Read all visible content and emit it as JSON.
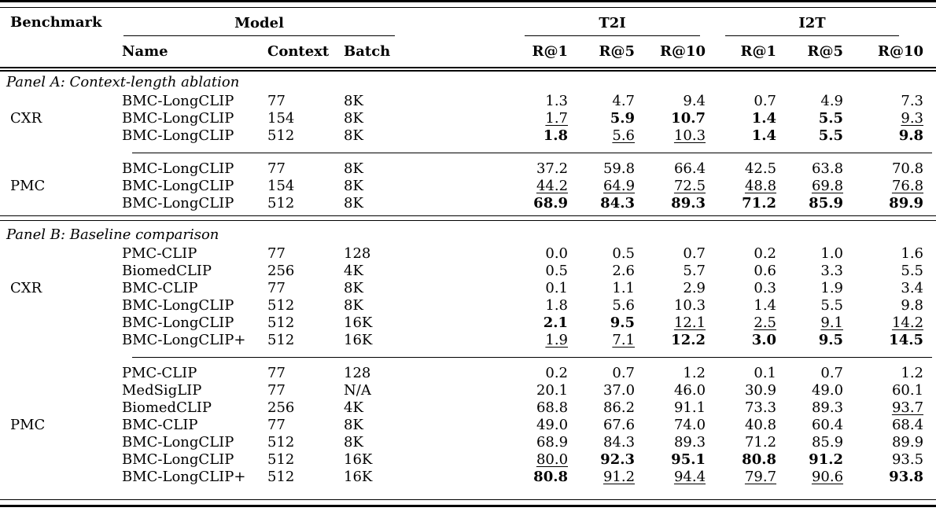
{
  "colors": {
    "text": "#000000",
    "background": "#ffffff",
    "rule": "#000000"
  },
  "table": {
    "headers": {
      "benchmark": "Benchmark",
      "model_group": "Model",
      "t2i_group": "T2I",
      "i2t_group": "I2T",
      "name": "Name",
      "context": "Context",
      "batch": "Batch",
      "metrics": [
        "R@1",
        "R@5",
        "R@10",
        "R@1",
        "R@5",
        "R@10"
      ]
    },
    "panels": [
      {
        "title": "Panel A: Context-length ablation",
        "groups": [
          {
            "benchmark": "CXR",
            "label_row_index": 1,
            "rows": [
              {
                "name": "BMC-LongCLIP",
                "context": "77",
                "batch": "8K",
                "values": [
                  {
                    "v": "1.3",
                    "s": "p"
                  },
                  {
                    "v": "4.7",
                    "s": "p"
                  },
                  {
                    "v": "9.4",
                    "s": "p"
                  },
                  {
                    "v": "0.7",
                    "s": "p"
                  },
                  {
                    "v": "4.9",
                    "s": "p"
                  },
                  {
                    "v": "7.3",
                    "s": "p"
                  }
                ]
              },
              {
                "name": "BMC-LongCLIP",
                "context": "154",
                "batch": "8K",
                "values": [
                  {
                    "v": "1.7",
                    "s": "u"
                  },
                  {
                    "v": "5.9",
                    "s": "b"
                  },
                  {
                    "v": "10.7",
                    "s": "b"
                  },
                  {
                    "v": "1.4",
                    "s": "b"
                  },
                  {
                    "v": "5.5",
                    "s": "b"
                  },
                  {
                    "v": "9.3",
                    "s": "u"
                  }
                ]
              },
              {
                "name": "BMC-LongCLIP",
                "context": "512",
                "batch": "8K",
                "values": [
                  {
                    "v": "1.8",
                    "s": "b"
                  },
                  {
                    "v": "5.6",
                    "s": "u"
                  },
                  {
                    "v": "10.3",
                    "s": "u"
                  },
                  {
                    "v": "1.4",
                    "s": "b"
                  },
                  {
                    "v": "5.5",
                    "s": "b"
                  },
                  {
                    "v": "9.8",
                    "s": "b"
                  }
                ]
              }
            ]
          },
          {
            "benchmark": "PMC",
            "label_row_index": 1,
            "rows": [
              {
                "name": "BMC-LongCLIP",
                "context": "77",
                "batch": "8K",
                "values": [
                  {
                    "v": "37.2",
                    "s": "p"
                  },
                  {
                    "v": "59.8",
                    "s": "p"
                  },
                  {
                    "v": "66.4",
                    "s": "p"
                  },
                  {
                    "v": "42.5",
                    "s": "p"
                  },
                  {
                    "v": "63.8",
                    "s": "p"
                  },
                  {
                    "v": "70.8",
                    "s": "p"
                  }
                ]
              },
              {
                "name": "BMC-LongCLIP",
                "context": "154",
                "batch": "8K",
                "values": [
                  {
                    "v": "44.2",
                    "s": "u"
                  },
                  {
                    "v": "64.9",
                    "s": "u"
                  },
                  {
                    "v": "72.5",
                    "s": "u"
                  },
                  {
                    "v": "48.8",
                    "s": "u"
                  },
                  {
                    "v": "69.8",
                    "s": "u"
                  },
                  {
                    "v": "76.8",
                    "s": "u"
                  }
                ]
              },
              {
                "name": "BMC-LongCLIP",
                "context": "512",
                "batch": "8K",
                "values": [
                  {
                    "v": "68.9",
                    "s": "b"
                  },
                  {
                    "v": "84.3",
                    "s": "b"
                  },
                  {
                    "v": "89.3",
                    "s": "b"
                  },
                  {
                    "v": "71.2",
                    "s": "b"
                  },
                  {
                    "v": "85.9",
                    "s": "b"
                  },
                  {
                    "v": "89.9",
                    "s": "b"
                  }
                ]
              }
            ]
          }
        ]
      },
      {
        "title": "Panel B: Baseline comparison",
        "groups": [
          {
            "benchmark": "CXR",
            "label_row_index": 2,
            "rows": [
              {
                "name": "PMC-CLIP",
                "context": "77",
                "batch": "128",
                "values": [
                  {
                    "v": "0.0",
                    "s": "p"
                  },
                  {
                    "v": "0.5",
                    "s": "p"
                  },
                  {
                    "v": "0.7",
                    "s": "p"
                  },
                  {
                    "v": "0.2",
                    "s": "p"
                  },
                  {
                    "v": "1.0",
                    "s": "p"
                  },
                  {
                    "v": "1.6",
                    "s": "p"
                  }
                ]
              },
              {
                "name": "BiomedCLIP",
                "context": "256",
                "batch": "4K",
                "values": [
                  {
                    "v": "0.5",
                    "s": "p"
                  },
                  {
                    "v": "2.6",
                    "s": "p"
                  },
                  {
                    "v": "5.7",
                    "s": "p"
                  },
                  {
                    "v": "0.6",
                    "s": "p"
                  },
                  {
                    "v": "3.3",
                    "s": "p"
                  },
                  {
                    "v": "5.5",
                    "s": "p"
                  }
                ]
              },
              {
                "name": "BMC-CLIP",
                "context": "77",
                "batch": "8K",
                "values": [
                  {
                    "v": "0.1",
                    "s": "p"
                  },
                  {
                    "v": "1.1",
                    "s": "p"
                  },
                  {
                    "v": "2.9",
                    "s": "p"
                  },
                  {
                    "v": "0.3",
                    "s": "p"
                  },
                  {
                    "v": "1.9",
                    "s": "p"
                  },
                  {
                    "v": "3.4",
                    "s": "p"
                  }
                ]
              },
              {
                "name": "BMC-LongCLIP",
                "context": "512",
                "batch": "8K",
                "values": [
                  {
                    "v": "1.8",
                    "s": "p"
                  },
                  {
                    "v": "5.6",
                    "s": "p"
                  },
                  {
                    "v": "10.3",
                    "s": "p"
                  },
                  {
                    "v": "1.4",
                    "s": "p"
                  },
                  {
                    "v": "5.5",
                    "s": "p"
                  },
                  {
                    "v": "9.8",
                    "s": "p"
                  }
                ]
              },
              {
                "name": "BMC-LongCLIP",
                "context": "512",
                "batch": "16K",
                "values": [
                  {
                    "v": "2.1",
                    "s": "b"
                  },
                  {
                    "v": "9.5",
                    "s": "b"
                  },
                  {
                    "v": "12.1",
                    "s": "u"
                  },
                  {
                    "v": "2.5",
                    "s": "u"
                  },
                  {
                    "v": "9.1",
                    "s": "u"
                  },
                  {
                    "v": "14.2",
                    "s": "u"
                  }
                ]
              },
              {
                "name": "BMC-LongCLIP+",
                "context": "512",
                "batch": "16K",
                "values": [
                  {
                    "v": "1.9",
                    "s": "u"
                  },
                  {
                    "v": "7.1",
                    "s": "u"
                  },
                  {
                    "v": "12.2",
                    "s": "b"
                  },
                  {
                    "v": "3.0",
                    "s": "b"
                  },
                  {
                    "v": "9.5",
                    "s": "b"
                  },
                  {
                    "v": "14.5",
                    "s": "b"
                  }
                ]
              }
            ]
          },
          {
            "benchmark": "PMC",
            "label_row_index": 3,
            "rows": [
              {
                "name": "PMC-CLIP",
                "context": "77",
                "batch": "128",
                "values": [
                  {
                    "v": "0.2",
                    "s": "p"
                  },
                  {
                    "v": "0.7",
                    "s": "p"
                  },
                  {
                    "v": "1.2",
                    "s": "p"
                  },
                  {
                    "v": "0.1",
                    "s": "p"
                  },
                  {
                    "v": "0.7",
                    "s": "p"
                  },
                  {
                    "v": "1.2",
                    "s": "p"
                  }
                ]
              },
              {
                "name": "MedSigLIP",
                "context": "77",
                "batch": "N/A",
                "values": [
                  {
                    "v": "20.1",
                    "s": "p"
                  },
                  {
                    "v": "37.0",
                    "s": "p"
                  },
                  {
                    "v": "46.0",
                    "s": "p"
                  },
                  {
                    "v": "30.9",
                    "s": "p"
                  },
                  {
                    "v": "49.0",
                    "s": "p"
                  },
                  {
                    "v": "60.1",
                    "s": "p"
                  }
                ]
              },
              {
                "name": "BiomedCLIP",
                "context": "256",
                "batch": "4K",
                "values": [
                  {
                    "v": "68.8",
                    "s": "p"
                  },
                  {
                    "v": "86.2",
                    "s": "p"
                  },
                  {
                    "v": "91.1",
                    "s": "p"
                  },
                  {
                    "v": "73.3",
                    "s": "p"
                  },
                  {
                    "v": "89.3",
                    "s": "p"
                  },
                  {
                    "v": "93.7",
                    "s": "u"
                  }
                ]
              },
              {
                "name": "BMC-CLIP",
                "context": "77",
                "batch": "8K",
                "values": [
                  {
                    "v": "49.0",
                    "s": "p"
                  },
                  {
                    "v": "67.6",
                    "s": "p"
                  },
                  {
                    "v": "74.0",
                    "s": "p"
                  },
                  {
                    "v": "40.8",
                    "s": "p"
                  },
                  {
                    "v": "60.4",
                    "s": "p"
                  },
                  {
                    "v": "68.4",
                    "s": "p"
                  }
                ]
              },
              {
                "name": "BMC-LongCLIP",
                "context": "512",
                "batch": "8K",
                "values": [
                  {
                    "v": "68.9",
                    "s": "p"
                  },
                  {
                    "v": "84.3",
                    "s": "p"
                  },
                  {
                    "v": "89.3",
                    "s": "p"
                  },
                  {
                    "v": "71.2",
                    "s": "p"
                  },
                  {
                    "v": "85.9",
                    "s": "p"
                  },
                  {
                    "v": "89.9",
                    "s": "p"
                  }
                ]
              },
              {
                "name": "BMC-LongCLIP",
                "context": "512",
                "batch": "16K",
                "values": [
                  {
                    "v": "80.0",
                    "s": "u"
                  },
                  {
                    "v": "92.3",
                    "s": "b"
                  },
                  {
                    "v": "95.1",
                    "s": "b"
                  },
                  {
                    "v": "80.8",
                    "s": "b"
                  },
                  {
                    "v": "91.2",
                    "s": "b"
                  },
                  {
                    "v": "93.5",
                    "s": "p"
                  }
                ]
              },
              {
                "name": "BMC-LongCLIP+",
                "context": "512",
                "batch": "16K",
                "values": [
                  {
                    "v": "80.8",
                    "s": "b"
                  },
                  {
                    "v": "91.2",
                    "s": "u"
                  },
                  {
                    "v": "94.4",
                    "s": "u"
                  },
                  {
                    "v": "79.7",
                    "s": "u"
                  },
                  {
                    "v": "90.6",
                    "s": "u"
                  },
                  {
                    "v": "93.8",
                    "s": "b"
                  }
                ]
              }
            ]
          }
        ]
      }
    ]
  }
}
